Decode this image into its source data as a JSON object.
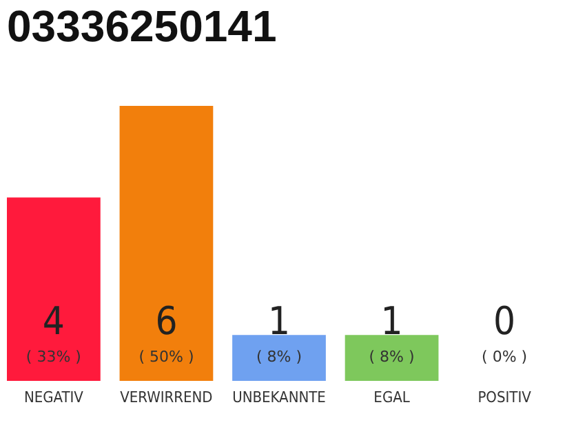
{
  "chart_data": {
    "type": "bar",
    "title": "03336250141",
    "categories": [
      "NEGATIV",
      "VERWIRREND",
      "UNBEKANNTE",
      "EGAL",
      "POSITIV"
    ],
    "values": [
      4,
      6,
      1,
      1,
      0
    ],
    "colors": [
      "#ff1a3c",
      "#f27f0c",
      "#6fa1f0",
      "#7ec85c",
      "#5a9e3a"
    ],
    "data_labels": true,
    "annotations": [
      "( 33% )",
      "( 50% )",
      "( 8% )",
      "( 8% )",
      "( 0% )"
    ]
  }
}
